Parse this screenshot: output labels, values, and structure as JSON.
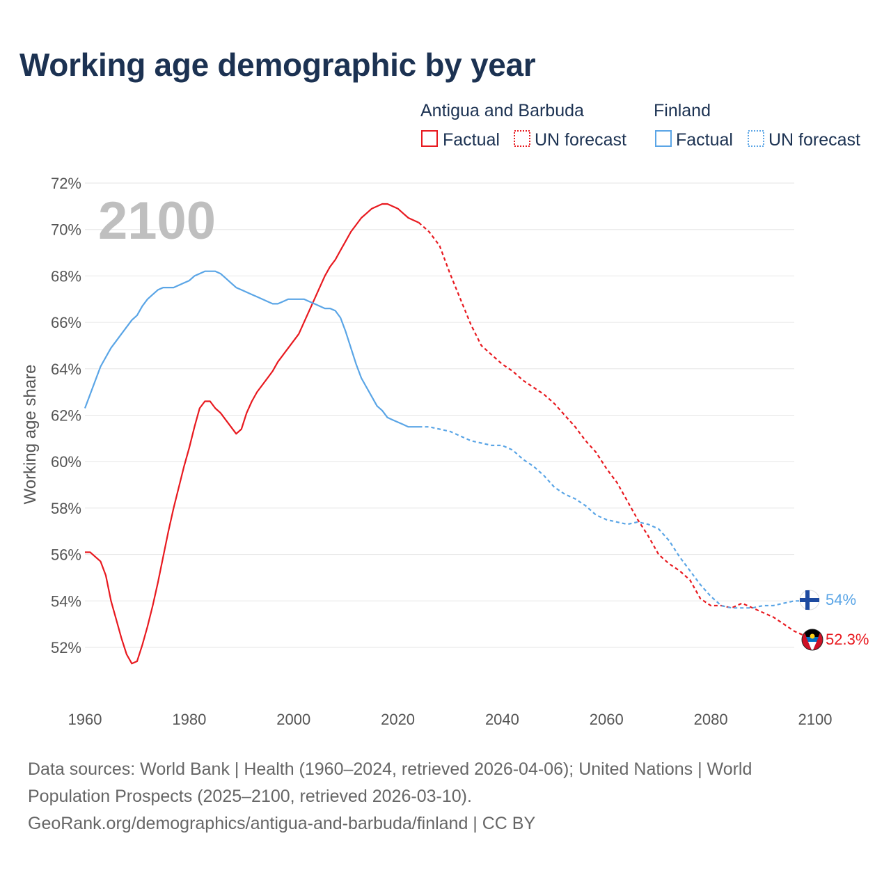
{
  "title": "Working age demographic by year",
  "footer": {
    "line1": "Data sources: World Bank | Health (1960–2024, retrieved 2026-04-06); United Nations | World",
    "line2": "Population Prospects (2025–2100, retrieved 2026-03-10).",
    "line3": "GeoRank.org/demographics/antigua-and-barbuda/finland | CC BY"
  },
  "colors": {
    "antigua": "#e8191f",
    "finland": "#5aa5e6",
    "grid": "#e6e6e6",
    "watermark": "#bfbfbf"
  },
  "chart_data": {
    "type": "line",
    "title": "Working age demographic by year",
    "xlabel": "",
    "ylabel": "Working age share",
    "year_watermark": "2100",
    "xlim": [
      1960,
      2103
    ],
    "ylim": [
      50.0,
      72.3
    ],
    "x_ticks": [
      1960,
      1980,
      2000,
      2020,
      2040,
      2060,
      2080,
      2100
    ],
    "x_tick_labels": [
      "1960",
      "1980",
      "2000",
      "2020",
      "2040",
      "2060",
      "2080",
      "2100"
    ],
    "y_ticks": [
      52,
      54,
      56,
      58,
      60,
      62,
      64,
      66,
      68,
      70,
      72
    ],
    "y_tick_labels": [
      "52%",
      "54%",
      "56%",
      "58%",
      "60%",
      "62%",
      "64%",
      "66%",
      "68%",
      "70%",
      "72%"
    ],
    "grid": true,
    "legend": {
      "placement": "top-right",
      "groups": [
        {
          "name": "Antigua and Barbuda",
          "factual_label": "Factual",
          "forecast_label": "UN forecast"
        },
        {
          "name": "Finland",
          "factual_label": "Factual",
          "forecast_label": "UN forecast"
        }
      ]
    },
    "series": [
      {
        "name": "Antigua and Barbuda",
        "color_key": "antigua",
        "end_label": "52.3%",
        "flag_icon": "antigua-and-barbuda-flag-icon",
        "factual": {
          "x": [
            1960,
            1961,
            1962,
            1963,
            1964,
            1965,
            1966,
            1967,
            1968,
            1969,
            1970,
            1971,
            1972,
            1973,
            1974,
            1975,
            1976,
            1977,
            1978,
            1979,
            1980,
            1981,
            1982,
            1983,
            1984,
            1985,
            1986,
            1987,
            1988,
            1989,
            1990,
            1991,
            1992,
            1993,
            1994,
            1995,
            1996,
            1997,
            1998,
            1999,
            2000,
            2001,
            2002,
            2003,
            2004,
            2005,
            2006,
            2007,
            2008,
            2009,
            2010,
            2011,
            2012,
            2013,
            2014,
            2015,
            2016,
            2017,
            2018,
            2019,
            2020,
            2021,
            2022,
            2023,
            2024
          ],
          "y": [
            56.1,
            56.1,
            55.9,
            55.7,
            55.1,
            54.0,
            53.2,
            52.4,
            51.7,
            51.3,
            51.4,
            52.1,
            52.9,
            53.8,
            54.8,
            55.9,
            57.0,
            58.0,
            58.9,
            59.8,
            60.6,
            61.5,
            62.3,
            62.6,
            62.6,
            62.3,
            62.1,
            61.8,
            61.5,
            61.2,
            61.4,
            62.1,
            62.6,
            63.0,
            63.3,
            63.6,
            63.9,
            64.3,
            64.6,
            64.9,
            65.2,
            65.5,
            66.0,
            66.5,
            67.0,
            67.5,
            68.0,
            68.4,
            68.7,
            69.1,
            69.5,
            69.9,
            70.2,
            70.5,
            70.7,
            70.9,
            71.0,
            71.1,
            71.1,
            71.0,
            70.9,
            70.7,
            70.5,
            70.4,
            70.3
          ]
        },
        "forecast": {
          "x": [
            2024,
            2026,
            2028,
            2030,
            2032,
            2034,
            2036,
            2038,
            2040,
            2042,
            2044,
            2046,
            2048,
            2050,
            2052,
            2054,
            2056,
            2058,
            2060,
            2062,
            2064,
            2066,
            2068,
            2070,
            2072,
            2074,
            2076,
            2078,
            2080,
            2082,
            2084,
            2086,
            2088,
            2090,
            2092,
            2094,
            2096,
            2098,
            2100
          ],
          "y": [
            70.3,
            69.9,
            69.3,
            68.1,
            67.0,
            65.9,
            65.0,
            64.6,
            64.2,
            63.9,
            63.5,
            63.2,
            62.9,
            62.5,
            62.0,
            61.5,
            60.9,
            60.4,
            59.7,
            59.1,
            58.3,
            57.5,
            56.8,
            56.0,
            55.6,
            55.3,
            54.9,
            54.1,
            53.8,
            53.8,
            53.7,
            53.9,
            53.7,
            53.5,
            53.3,
            53.0,
            52.7,
            52.5,
            52.3
          ]
        }
      },
      {
        "name": "Finland",
        "color_key": "finland",
        "end_label": "54%",
        "flag_icon": "finland-flag-icon",
        "factual": {
          "x": [
            1960,
            1961,
            1962,
            1963,
            1964,
            1965,
            1966,
            1967,
            1968,
            1969,
            1970,
            1971,
            1972,
            1973,
            1974,
            1975,
            1976,
            1977,
            1978,
            1979,
            1980,
            1981,
            1982,
            1983,
            1984,
            1985,
            1986,
            1987,
            1988,
            1989,
            1990,
            1991,
            1992,
            1993,
            1994,
            1995,
            1996,
            1997,
            1998,
            1999,
            2000,
            2001,
            2002,
            2003,
            2004,
            2005,
            2006,
            2007,
            2008,
            2009,
            2010,
            2011,
            2012,
            2013,
            2014,
            2015,
            2016,
            2017,
            2018,
            2019,
            2020,
            2021,
            2022,
            2023,
            2024
          ],
          "y": [
            62.3,
            62.9,
            63.5,
            64.1,
            64.5,
            64.9,
            65.2,
            65.5,
            65.8,
            66.1,
            66.3,
            66.7,
            67.0,
            67.2,
            67.4,
            67.5,
            67.5,
            67.5,
            67.6,
            67.7,
            67.8,
            68.0,
            68.1,
            68.2,
            68.2,
            68.2,
            68.1,
            67.9,
            67.7,
            67.5,
            67.4,
            67.3,
            67.2,
            67.1,
            67.0,
            66.9,
            66.8,
            66.8,
            66.9,
            67.0,
            67.0,
            67.0,
            67.0,
            66.9,
            66.8,
            66.7,
            66.6,
            66.6,
            66.5,
            66.2,
            65.6,
            64.9,
            64.2,
            63.6,
            63.2,
            62.8,
            62.4,
            62.2,
            61.9,
            61.8,
            61.7,
            61.6,
            61.5,
            61.5,
            61.5
          ]
        },
        "forecast": {
          "x": [
            2024,
            2026,
            2028,
            2030,
            2032,
            2034,
            2036,
            2038,
            2040,
            2042,
            2044,
            2046,
            2048,
            2050,
            2052,
            2054,
            2056,
            2058,
            2060,
            2062,
            2064,
            2066,
            2068,
            2070,
            2072,
            2074,
            2076,
            2078,
            2080,
            2082,
            2084,
            2086,
            2088,
            2090,
            2092,
            2094,
            2096,
            2098,
            2100
          ],
          "y": [
            61.5,
            61.5,
            61.4,
            61.3,
            61.1,
            60.9,
            60.8,
            60.7,
            60.7,
            60.5,
            60.1,
            59.8,
            59.4,
            58.9,
            58.6,
            58.4,
            58.1,
            57.7,
            57.5,
            57.4,
            57.3,
            57.4,
            57.3,
            57.1,
            56.6,
            55.9,
            55.3,
            54.7,
            54.2,
            53.8,
            53.7,
            53.7,
            53.7,
            53.8,
            53.8,
            53.9,
            54.0,
            54.0,
            54.0
          ]
        }
      }
    ]
  }
}
